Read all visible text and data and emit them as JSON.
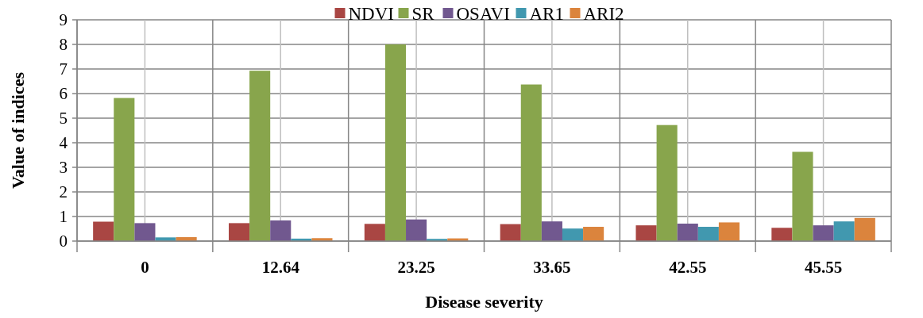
{
  "chart_data": {
    "type": "bar",
    "xlabel": "Disease severity",
    "ylabel": "Value of indices",
    "categories": [
      "0",
      "12.64",
      "23.25",
      "33.65",
      "42.55",
      "45.55"
    ],
    "series": [
      {
        "name": "NDVI",
        "color": "#a94643",
        "values": [
          0.79,
          0.73,
          0.7,
          0.69,
          0.64,
          0.54
        ]
      },
      {
        "name": "SR",
        "color": "#88a54c",
        "values": [
          5.82,
          6.93,
          8.0,
          6.37,
          4.72,
          3.63
        ]
      },
      {
        "name": "OSAVI",
        "color": "#71588f",
        "values": [
          0.73,
          0.84,
          0.88,
          0.8,
          0.71,
          0.64
        ]
      },
      {
        "name": "AR1",
        "color": "#4198af",
        "values": [
          0.15,
          0.1,
          0.09,
          0.51,
          0.58,
          0.8
        ]
      },
      {
        "name": "ARI2",
        "color": "#db843d",
        "values": [
          0.16,
          0.12,
          0.11,
          0.58,
          0.76,
          0.94
        ]
      }
    ],
    "ylim": [
      0,
      9
    ],
    "yticks": [
      0,
      1,
      2,
      3,
      4,
      5,
      6,
      7,
      8,
      9
    ],
    "grid": true,
    "legend": "top"
  }
}
